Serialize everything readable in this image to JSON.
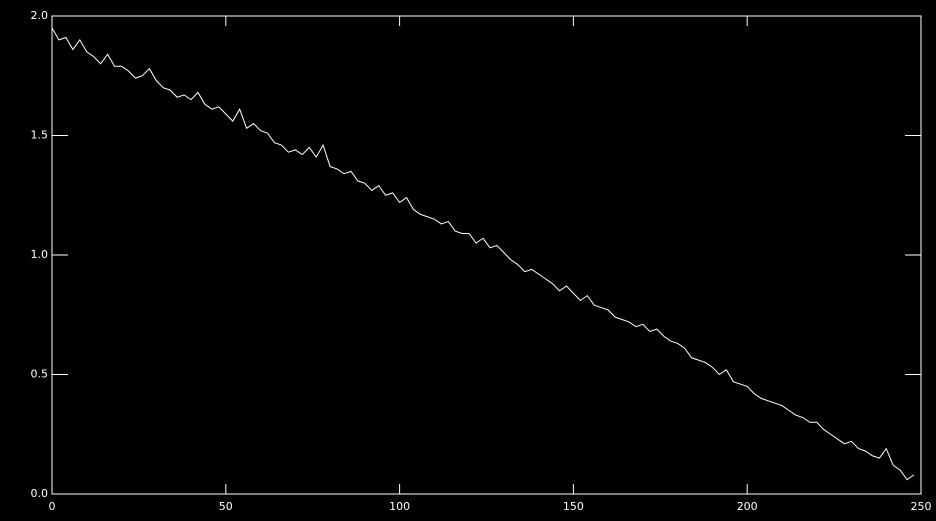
{
  "chart_data": {
    "type": "line",
    "x": [
      0,
      2,
      4,
      6,
      8,
      10,
      12,
      14,
      16,
      18,
      20,
      22,
      24,
      26,
      28,
      30,
      32,
      34,
      36,
      38,
      40,
      42,
      44,
      46,
      48,
      50,
      52,
      54,
      56,
      58,
      60,
      62,
      64,
      66,
      68,
      70,
      72,
      74,
      76,
      78,
      80,
      82,
      84,
      86,
      88,
      90,
      92,
      94,
      96,
      98,
      100,
      102,
      104,
      106,
      108,
      110,
      112,
      114,
      116,
      118,
      120,
      122,
      124,
      126,
      128,
      130,
      132,
      134,
      136,
      138,
      140,
      142,
      144,
      146,
      148,
      150,
      152,
      154,
      156,
      158,
      160,
      162,
      164,
      166,
      168,
      170,
      172,
      174,
      176,
      178,
      180,
      182,
      184,
      186,
      188,
      190,
      192,
      194,
      196,
      198,
      200,
      202,
      204,
      206,
      208,
      210,
      212,
      214,
      216,
      218,
      220,
      222,
      224,
      226,
      228,
      230,
      232,
      234,
      236,
      238,
      240,
      242,
      244,
      246,
      248
    ],
    "values": [
      1.95,
      1.9,
      1.91,
      1.86,
      1.9,
      1.85,
      1.83,
      1.8,
      1.84,
      1.79,
      1.79,
      1.77,
      1.74,
      1.75,
      1.78,
      1.73,
      1.7,
      1.69,
      1.66,
      1.67,
      1.65,
      1.68,
      1.63,
      1.61,
      1.62,
      1.59,
      1.56,
      1.61,
      1.53,
      1.55,
      1.52,
      1.51,
      1.47,
      1.46,
      1.43,
      1.44,
      1.42,
      1.45,
      1.41,
      1.46,
      1.37,
      1.36,
      1.34,
      1.35,
      1.31,
      1.3,
      1.27,
      1.29,
      1.25,
      1.26,
      1.22,
      1.24,
      1.19,
      1.17,
      1.16,
      1.15,
      1.13,
      1.14,
      1.1,
      1.09,
      1.09,
      1.05,
      1.07,
      1.03,
      1.04,
      1.01,
      0.98,
      0.96,
      0.93,
      0.94,
      0.92,
      0.9,
      0.88,
      0.85,
      0.87,
      0.84,
      0.81,
      0.83,
      0.79,
      0.78,
      0.77,
      0.74,
      0.73,
      0.72,
      0.7,
      0.71,
      0.68,
      0.69,
      0.66,
      0.64,
      0.63,
      0.61,
      0.57,
      0.56,
      0.55,
      0.53,
      0.5,
      0.52,
      0.47,
      0.46,
      0.45,
      0.42,
      0.4,
      0.39,
      0.38,
      0.37,
      0.35,
      0.33,
      0.32,
      0.3,
      0.3,
      0.27,
      0.25,
      0.23,
      0.21,
      0.22,
      0.19,
      0.18,
      0.16,
      0.15,
      0.19,
      0.12,
      0.1,
      0.06,
      0.08
    ],
    "color": "#ffffff",
    "xlim": [
      0,
      250
    ],
    "xticks": [
      0,
      50,
      100,
      150,
      200,
      250
    ],
    "ylim": [
      0,
      2.0
    ],
    "yticks": [
      {
        "value": 0,
        "label": "0.0"
      },
      {
        "value": 0.5,
        "label": "0.5"
      },
      {
        "value": 1,
        "label": "1.0"
      },
      {
        "value": 1.5,
        "label": "1.5"
      },
      {
        "value": 2,
        "label": "2.0"
      }
    ]
  }
}
